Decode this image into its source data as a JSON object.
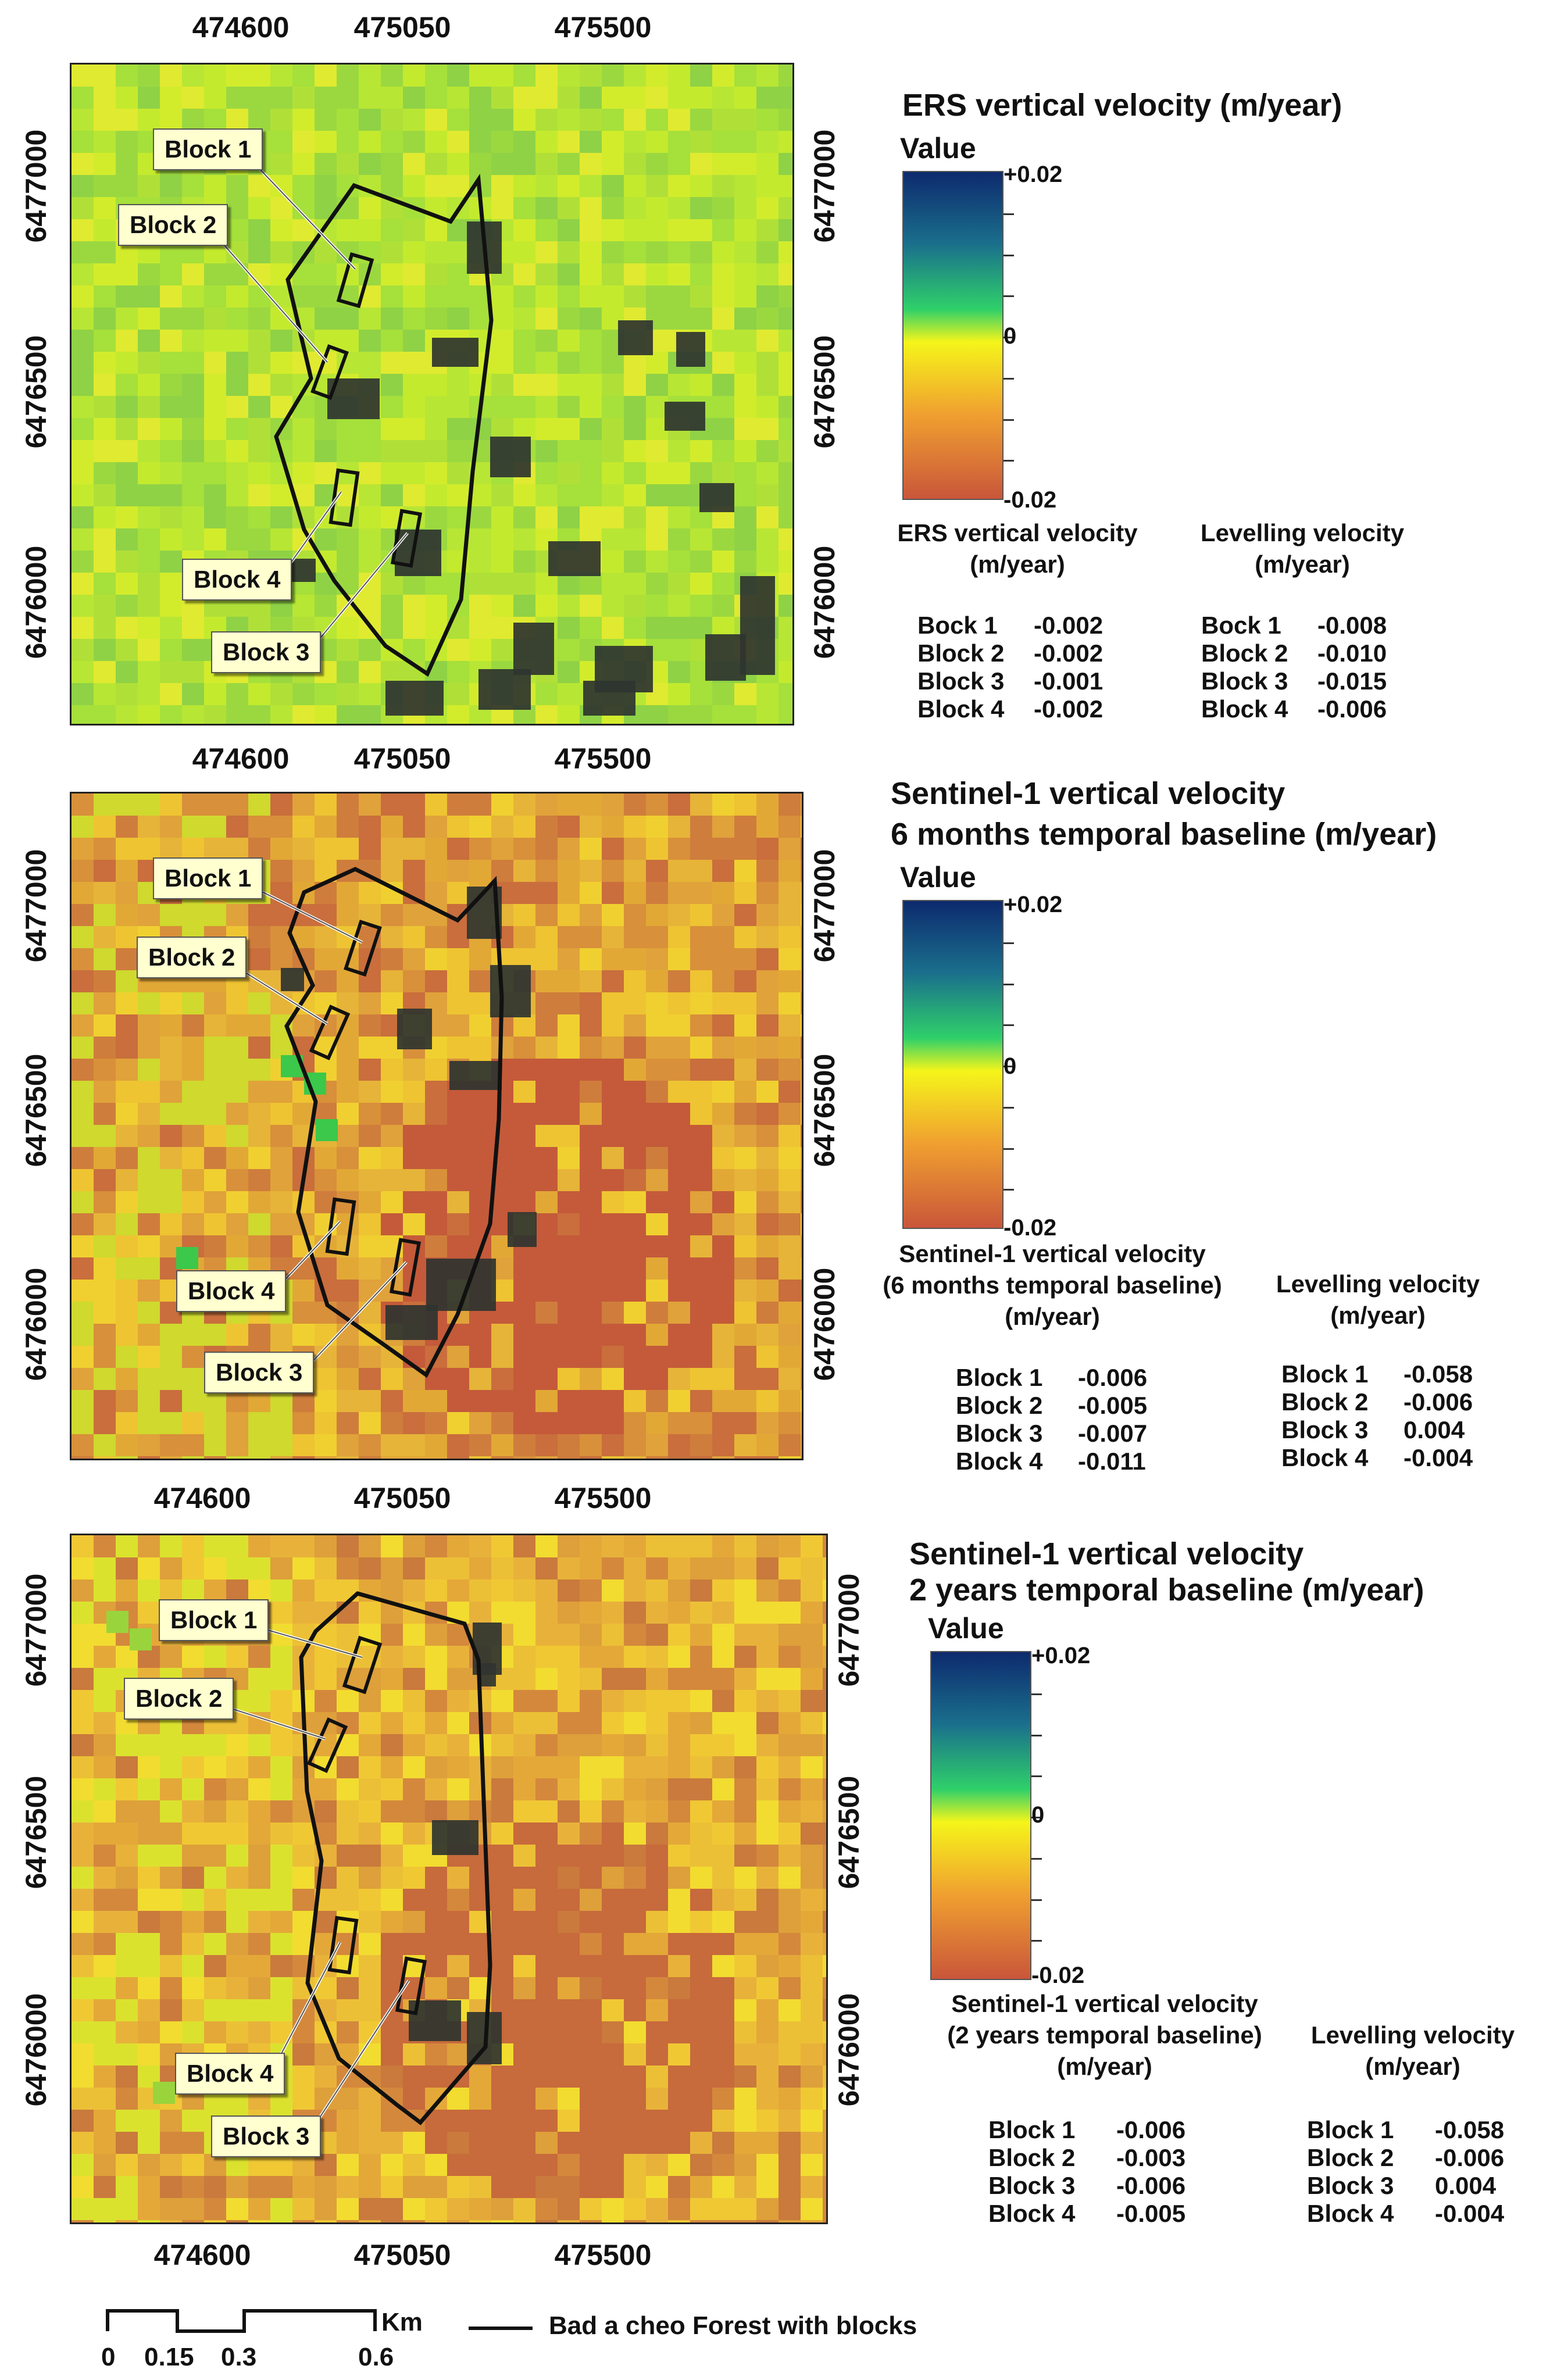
{
  "maps": [
    {
      "name": "ers",
      "x_ticks": [
        "474600",
        "475050",
        "475500"
      ],
      "y_ticks": [
        "6477000",
        "6476500",
        "6476000"
      ],
      "title": "ERS vertical velocity (m/year)",
      "title2": "",
      "value_label": "Value",
      "legend_max": "+0.02",
      "legend_mid": "0",
      "legend_min": "-0.02",
      "blocks": [
        "Block 1",
        "Block 2",
        "Block 4",
        "Block 3"
      ],
      "header_left": [
        "ERS vertical velocity",
        "(m/year)"
      ],
      "header_right": [
        "Levelling velocity",
        "(m/year)"
      ],
      "left_rows": [
        [
          "Bock 1",
          "-0.002"
        ],
        [
          "Block 2",
          "-0.002"
        ],
        [
          "Block 3",
          "-0.001"
        ],
        [
          "Block 4",
          "-0.002"
        ]
      ],
      "right_rows": [
        [
          "Bock 1",
          "-0.008"
        ],
        [
          "Block 2",
          "-0.010"
        ],
        [
          "Block 3",
          "-0.015"
        ],
        [
          "Block 4",
          "-0.006"
        ]
      ]
    },
    {
      "name": "s1-6m",
      "x_ticks": [
        "474600",
        "475050",
        "475500"
      ],
      "y_ticks": [
        "6477000",
        "6476500",
        "6476000"
      ],
      "title": "Sentinel-1 vertical velocity",
      "title2": "6 months temporal baseline (m/year)",
      "value_label": "Value",
      "legend_max": "+0.02",
      "legend_mid": "0",
      "legend_min": "-0.02",
      "blocks": [
        "Block 1",
        "Block 2",
        "Block 4",
        "Block 3"
      ],
      "header_left": [
        "Sentinel-1 vertical velocity",
        "(6 months temporal baseline)",
        "(m/year)"
      ],
      "header_right": [
        "Levelling velocity",
        "(m/year)"
      ],
      "left_rows": [
        [
          "Block 1",
          "-0.006"
        ],
        [
          "Block 2",
          "-0.005"
        ],
        [
          "Block 3",
          "-0.007"
        ],
        [
          "Block 4",
          "-0.011"
        ]
      ],
      "right_rows": [
        [
          "Block 1",
          "-0.058"
        ],
        [
          "Block 2",
          "-0.006"
        ],
        [
          "Block 3",
          "0.004"
        ],
        [
          "Block 4",
          "-0.004"
        ]
      ]
    },
    {
      "name": "s1-2y",
      "x_ticks": [
        "474600",
        "475050",
        "475500"
      ],
      "y_ticks": [
        "6477000",
        "6476500",
        "6476000"
      ],
      "title": "Sentinel-1 vertical velocity",
      "title2": "2 years temporal baseline (m/year)",
      "value_label": "Value",
      "legend_max": "+0.02",
      "legend_mid": "0",
      "legend_min": "-0.02",
      "blocks": [
        "Block 1",
        "Block 2",
        "Block 4",
        "Block 3"
      ],
      "header_left": [
        "Sentinel-1 vertical velocity",
        "(2 years temporal baseline)",
        "(m/year)"
      ],
      "header_right": [
        "Levelling velocity",
        "(m/year)"
      ],
      "left_rows": [
        [
          "Block 1",
          "-0.006"
        ],
        [
          "Block 2",
          "-0.003"
        ],
        [
          "Block 3",
          "-0.006"
        ],
        [
          "Block 4",
          "-0.005"
        ]
      ],
      "right_rows": [
        [
          "Block 1",
          "-0.058"
        ],
        [
          "Block 2",
          "-0.006"
        ],
        [
          "Block 3",
          "0.004"
        ],
        [
          "Block 4",
          "-0.004"
        ]
      ]
    }
  ],
  "scale_bar": {
    "labels": [
      "0",
      "0.15",
      "0.3",
      "0.6"
    ],
    "unit": "Km",
    "legend_text": "Bad a cheo Forest with blocks"
  },
  "colors": {
    "ramp_top": "#0d2a6e",
    "ramp_green": "#2fd06a",
    "ramp_yellow": "#f5f51a",
    "ramp_bottom": "#c9563a"
  }
}
